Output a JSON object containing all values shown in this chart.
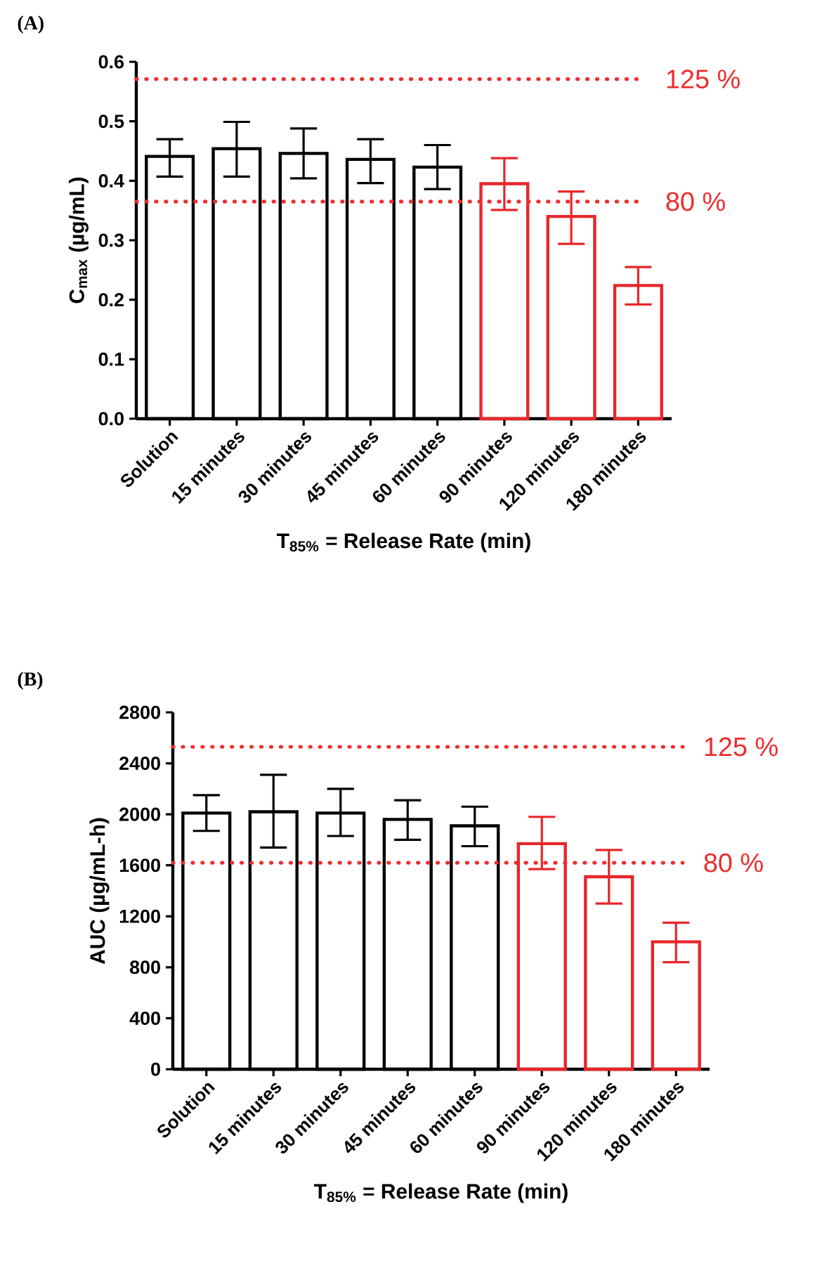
{
  "chart_data": [
    {
      "type": "bar",
      "title": "(A)",
      "xlabel": "T$_{85%}$ = Release Rate (min)",
      "ylabel": "C$_{max}$ (µg/mL)",
      "categories": [
        "Solution",
        "15 minutes",
        "30 minutes",
        "45 minutes",
        "60 minutes",
        "90 minutes",
        "120 minutes",
        "180 minutes"
      ],
      "values": [
        0.441,
        0.454,
        0.446,
        0.436,
        0.423,
        0.395,
        0.34,
        0.224
      ],
      "errors": [
        [
          0.407,
          0.47
        ],
        [
          0.407,
          0.499
        ],
        [
          0.404,
          0.488
        ],
        [
          0.396,
          0.47
        ],
        [
          0.386,
          0.46
        ],
        [
          0.351,
          0.438
        ],
        [
          0.294,
          0.382
        ],
        [
          0.192,
          0.255
        ]
      ],
      "colors": [
        "#000000",
        "#000000",
        "#000000",
        "#000000",
        "#000000",
        "#e8262a",
        "#e8262a",
        "#e8262a"
      ],
      "ylim": [
        0,
        0.6
      ],
      "yticks": [
        {
          "value": 0,
          "label": "0.0"
        },
        0.1,
        0.2,
        0.3,
        0.4,
        0.5,
        0.6
      ],
      "ref_lines": [
        {
          "axis": "y",
          "value": 0.571,
          "color": "#ee2c2c",
          "line_style": "dotted"
        },
        {
          "axis": "y",
          "value": 0.365,
          "color": "#ee2c2c",
          "line_style": "dotted"
        }
      ],
      "annotations": [
        "125 %",
        "80 %"
      ]
    },
    {
      "type": "bar",
      "title": "(B)",
      "xlabel": "T$_{85%}$ = Release Rate (min)",
      "ylabel": "AUC (µg/mL-h)",
      "categories": [
        "Solution",
        "15 minutes",
        "30 minutes",
        "45 minutes",
        "60 minutes",
        "90 minutes",
        "120 minutes",
        "180 minutes"
      ],
      "values": [
        2010,
        2020,
        2010,
        1960,
        1910,
        1770,
        1510,
        1000
      ],
      "errors": [
        [
          1870,
          2150
        ],
        [
          1740,
          2310
        ],
        [
          1830,
          2200
        ],
        [
          1800,
          2110
        ],
        [
          1750,
          2060
        ],
        [
          1570,
          1980
        ],
        [
          1300,
          1720
        ],
        [
          840,
          1150
        ]
      ],
      "colors": [
        "#000000",
        "#000000",
        "#000000",
        "#000000",
        "#000000",
        "#e8262a",
        "#e8262a",
        "#e8262a"
      ],
      "ylim": [
        0,
        2800
      ],
      "yticks": [
        0,
        400,
        800,
        1200,
        1600,
        2000,
        2400,
        2800
      ],
      "ref_lines": [
        {
          "axis": "y",
          "value": 2530,
          "color": "#ee2c2c",
          "line_style": "dotted"
        },
        {
          "axis": "y",
          "value": 1620,
          "color": "#ee2c2c",
          "line_style": "dotted"
        }
      ],
      "annotations": [
        "125 %",
        "80 %"
      ]
    }
  ]
}
